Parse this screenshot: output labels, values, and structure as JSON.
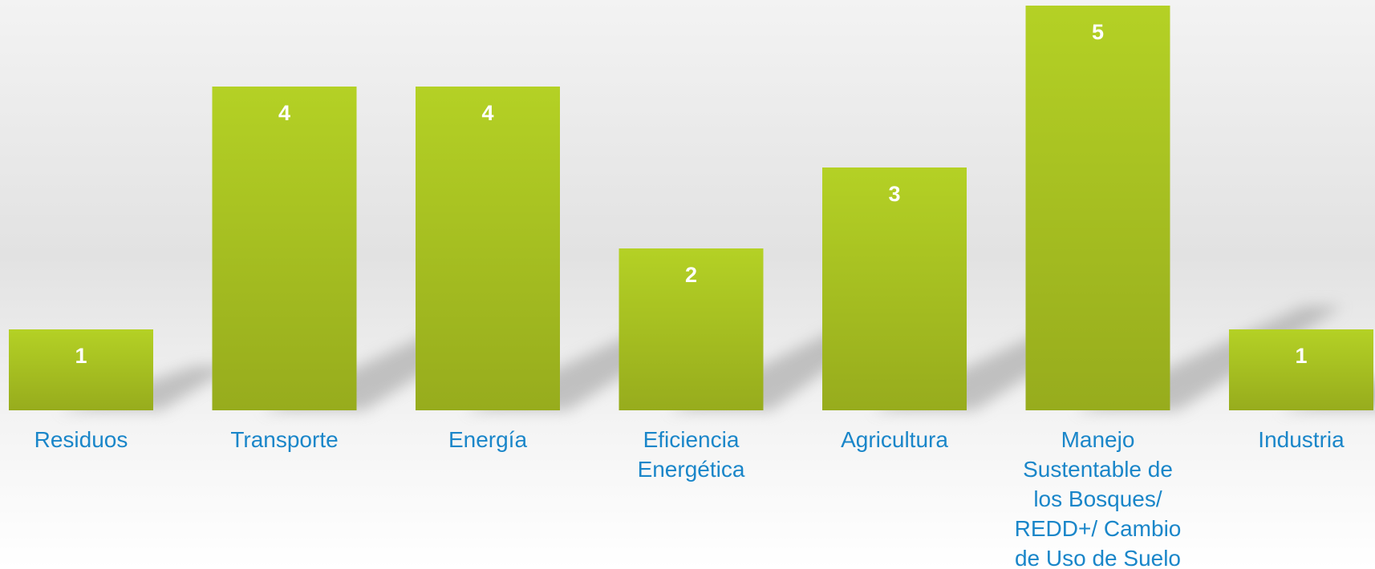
{
  "colors": {
    "bar_top": "#b4d125",
    "bar_bottom": "#97ac1d",
    "value_label": "#ffffff",
    "category_label": "#1a86c9",
    "shadow": "#9a9a9a"
  },
  "chart_data": {
    "type": "bar",
    "title": "",
    "xlabel": "",
    "ylabel": "",
    "categories": [
      "Residuos",
      "Transporte",
      "Energía",
      "Eficiencia Energética",
      "Agricultura",
      "Manejo Sustentable de los Bosques/ REDD+/ Cambio de Uso de Suelo",
      "Industria"
    ],
    "values": [
      1,
      4,
      4,
      2,
      3,
      5,
      1
    ],
    "value_labels": [
      "1",
      "4",
      "4",
      "2",
      "3",
      "5",
      "1"
    ],
    "ylim": [
      0,
      5
    ],
    "grid": false,
    "legend": "none",
    "data_labels": "inside-top"
  }
}
